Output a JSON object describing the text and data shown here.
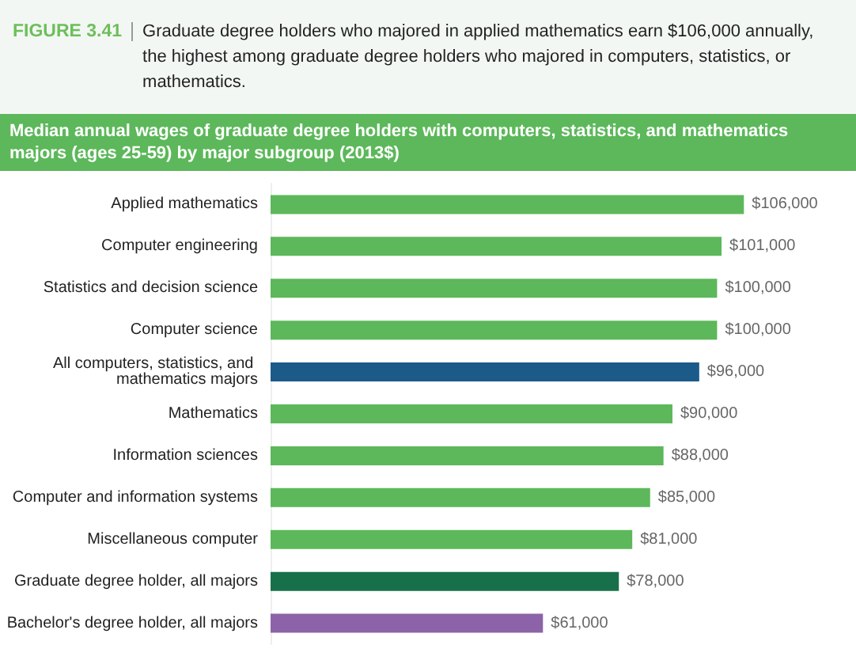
{
  "chart_data": {
    "type": "bar",
    "orientation": "horizontal",
    "annotations": [
      "FIGURE 3.41"
    ],
    "title": "Graduate degree holders who majored in applied mathematics earn $106,000 annually, the highest among graduate degree holders who majored in computers, statistics, or mathematics.",
    "subtitle": "Median annual wages of graduate degree holders with computers, statistics, and mathematics majors (ages 25-59) by major subgroup (2013$)",
    "categories": [
      "Applied mathematics",
      "Computer engineering",
      "Statistics and decision science",
      "Computer science",
      "All computers, statistics, and mathematics majors",
      "Mathematics",
      "Information sciences",
      "Computer and information systems",
      "Miscellaneous computer",
      "Graduate degree holder, all majors",
      "Bachelor's degree holder, all majors"
    ],
    "values": [
      106000,
      101000,
      100000,
      100000,
      96000,
      90000,
      88000,
      85000,
      81000,
      78000,
      61000
    ],
    "colors": [
      "#5cb85a",
      "#5cb85a",
      "#5cb85a",
      "#5cb85a",
      "#1c5a8a",
      "#5cb85a",
      "#5cb85a",
      "#5cb85a",
      "#5cb85a",
      "#17704a",
      "#8c63a8"
    ],
    "value_labels": [
      "$106,000",
      "$101,000",
      "$100,000",
      "$100,000",
      "$96,000",
      "$90,000",
      "$88,000",
      "$85,000",
      "$81,000",
      "$78,000",
      "$61,000"
    ]
  }
}
